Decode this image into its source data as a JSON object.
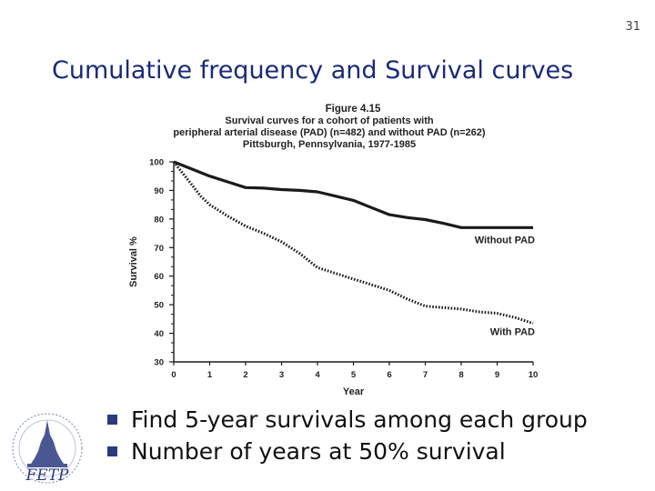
{
  "slide": {
    "number": "31",
    "title": "Cumulative frequency and Survival curves",
    "bullets": [
      "Find 5-year survivals among each group",
      "Number of years at 50% survival"
    ],
    "logo_text": "FETP"
  },
  "colors": {
    "title": "#1a2a7a",
    "bullet": "#2b3a7f",
    "series": "#1a1a1a"
  },
  "chart_data": {
    "type": "line",
    "title": "Figure 4.15",
    "subtitle": [
      "Survival curves for a cohort of patients with",
      "peripheral arterial disease (PAD) (n=482) and without PAD (n=262)",
      "Pittsburgh, Pennsylvania, 1977-1985"
    ],
    "xlabel": "Year",
    "ylabel": "Survival %",
    "xlim": [
      0,
      10
    ],
    "ylim": [
      30,
      100
    ],
    "xticks": [
      0,
      1,
      2,
      3,
      4,
      5,
      6,
      7,
      8,
      9,
      10
    ],
    "yticks": [
      30,
      40,
      50,
      60,
      70,
      80,
      90,
      100
    ],
    "grid": false,
    "series": [
      {
        "name": "Without PAD",
        "style": "solid",
        "x": [
          0,
          0.5,
          1,
          1.5,
          2,
          2.5,
          3,
          3.5,
          4,
          4.5,
          5,
          5.5,
          6,
          6.5,
          7,
          7.5,
          8,
          8.5,
          9,
          9.5,
          10
        ],
        "y": [
          100,
          97.5,
          95,
          93,
          91,
          90.8,
          90.3,
          90,
          89.5,
          88,
          86.5,
          84,
          81.5,
          80.5,
          79.8,
          78.5,
          77,
          77,
          77,
          77,
          77
        ]
      },
      {
        "name": "With PAD",
        "style": "dotted",
        "x": [
          0,
          0.25,
          0.5,
          0.75,
          1,
          1.5,
          2,
          2.5,
          3,
          3.5,
          4,
          4.5,
          5,
          5.5,
          6,
          6.5,
          7,
          7.5,
          8,
          8.5,
          9,
          9.5,
          10
        ],
        "y": [
          100,
          96,
          92,
          88,
          85,
          81,
          77.5,
          75,
          72,
          68,
          63,
          61,
          59,
          57,
          55,
          52,
          49.5,
          49,
          48.5,
          47.5,
          47,
          45.5,
          43.5
        ]
      }
    ]
  }
}
